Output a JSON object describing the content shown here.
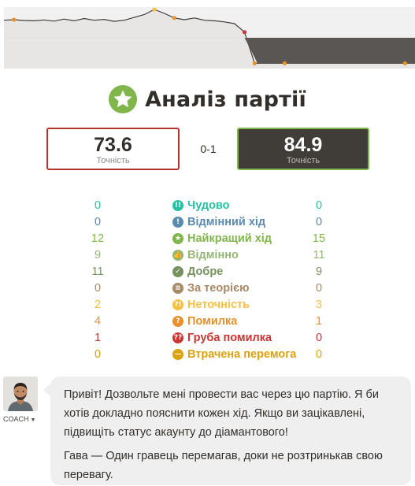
{
  "title": "Аналіз партії",
  "white": {
    "accuracy": "73.6",
    "accuracy_label": "Точність",
    "accent": "#b33430"
  },
  "black": {
    "accuracy": "84.9",
    "accuracy_label": "Точність",
    "accent": "#81b64c"
  },
  "result": "0-1",
  "stats": [
    {
      "label": "Чудово",
      "white": "0",
      "black": "0",
      "color": "#26c2a3",
      "icon": "brilliant-icon",
      "glyph": "!!"
    },
    {
      "label": "Відмінний хід",
      "white": "0",
      "black": "0",
      "color": "#5c8bb0",
      "icon": "great-move-icon",
      "glyph": "!"
    },
    {
      "label": "Найкращий хід",
      "white": "12",
      "black": "15",
      "color": "#81b64c",
      "icon": "best-move-icon",
      "glyph": "★"
    },
    {
      "label": "Відмінно",
      "white": "9",
      "black": "11",
      "color": "#95b776",
      "icon": "excellent-icon",
      "glyph": "👍"
    },
    {
      "label": "Добре",
      "white": "11",
      "black": "9",
      "color": "#77915f",
      "icon": "good-icon",
      "glyph": "✓"
    },
    {
      "label": "За теорією",
      "white": "0",
      "black": "0",
      "color": "#a88865",
      "icon": "book-icon",
      "glyph": "≡"
    },
    {
      "label": "Неточність",
      "white": "2",
      "black": "3",
      "color": "#f7c045",
      "icon": "inaccuracy-icon",
      "glyph": "?!"
    },
    {
      "label": "Помилка",
      "white": "4",
      "black": "1",
      "color": "#e6912c",
      "icon": "mistake-icon",
      "glyph": "?"
    },
    {
      "label": "Груба помилка",
      "white": "1",
      "black": "0",
      "color": "#ca3431",
      "icon": "blunder-icon",
      "glyph": "??"
    },
    {
      "label": "Втрачена перемога",
      "white": "0",
      "black": "0",
      "color": "#dba10f",
      "icon": "miss-icon",
      "glyph": "—"
    }
  ],
  "coach": {
    "label": "COACH",
    "messages": [
      "Привіт! Дозвольте мені провести вас через цю партію. Я би хотів докладно пояснити кожен хід. Якщо ви зацікавлені, підвищіть статус акаунту до діамантового!",
      "Гава — Один гравець перемагав, доки не розтринькав свою перевагу."
    ]
  },
  "eval_graph": {
    "series": [
      0.62,
      0.64,
      0.61,
      0.6,
      0.63,
      0.59,
      0.66,
      0.6,
      0.68,
      0.62,
      0.65,
      0.58,
      0.62,
      0.72,
      0.82,
      1.0,
      0.86,
      0.7,
      0.64,
      0.7,
      0.62,
      0.6,
      0.56,
      0.5,
      0.2,
      -0.9,
      -0.9,
      -0.9,
      -0.9,
      -0.9,
      -0.9,
      -0.9,
      -0.9,
      -0.9,
      -0.9,
      -0.9,
      -0.9,
      -0.9,
      -0.9,
      -0.9,
      -0.9,
      -0.9
    ],
    "highlight_colors": [
      "#e6912c",
      "#f7c045",
      "#ca3431"
    ]
  }
}
